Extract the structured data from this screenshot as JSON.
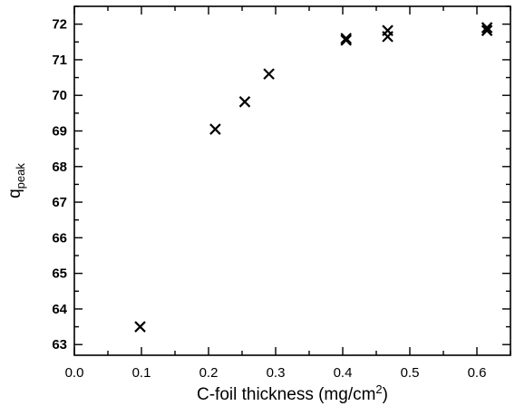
{
  "chart_data": {
    "type": "scatter",
    "xlabel_prefix": "C-foil thickness (mg/cm",
    "xlabel_sup": "2",
    "xlabel_suffix": ")",
    "ylabel_main": "q",
    "ylabel_sub": "peak",
    "xlim": [
      0.0,
      0.65
    ],
    "ylim": [
      62.7,
      72.5
    ],
    "x_ticks": [
      0.0,
      0.1,
      0.2,
      0.3,
      0.4,
      0.5,
      0.6
    ],
    "x_tick_labels": [
      "0.0",
      "0.1",
      "0.2",
      "0.3",
      "0.4",
      "0.5",
      "0.6"
    ],
    "y_ticks": [
      63,
      64,
      65,
      66,
      67,
      68,
      69,
      70,
      71,
      72
    ],
    "y_tick_labels": [
      "63",
      "64",
      "65",
      "66",
      "67",
      "68",
      "69",
      "70",
      "71",
      "72"
    ],
    "grid": false,
    "marker": "x",
    "points": [
      {
        "x": 0.098,
        "y": 63.5
      },
      {
        "x": 0.21,
        "y": 69.05
      },
      {
        "x": 0.254,
        "y": 69.82
      },
      {
        "x": 0.29,
        "y": 70.6
      },
      {
        "x": 0.405,
        "y": 71.55
      },
      {
        "x": 0.405,
        "y": 71.6
      },
      {
        "x": 0.467,
        "y": 71.82
      },
      {
        "x": 0.467,
        "y": 71.65
      },
      {
        "x": 0.615,
        "y": 71.9
      },
      {
        "x": 0.615,
        "y": 71.82
      }
    ]
  }
}
